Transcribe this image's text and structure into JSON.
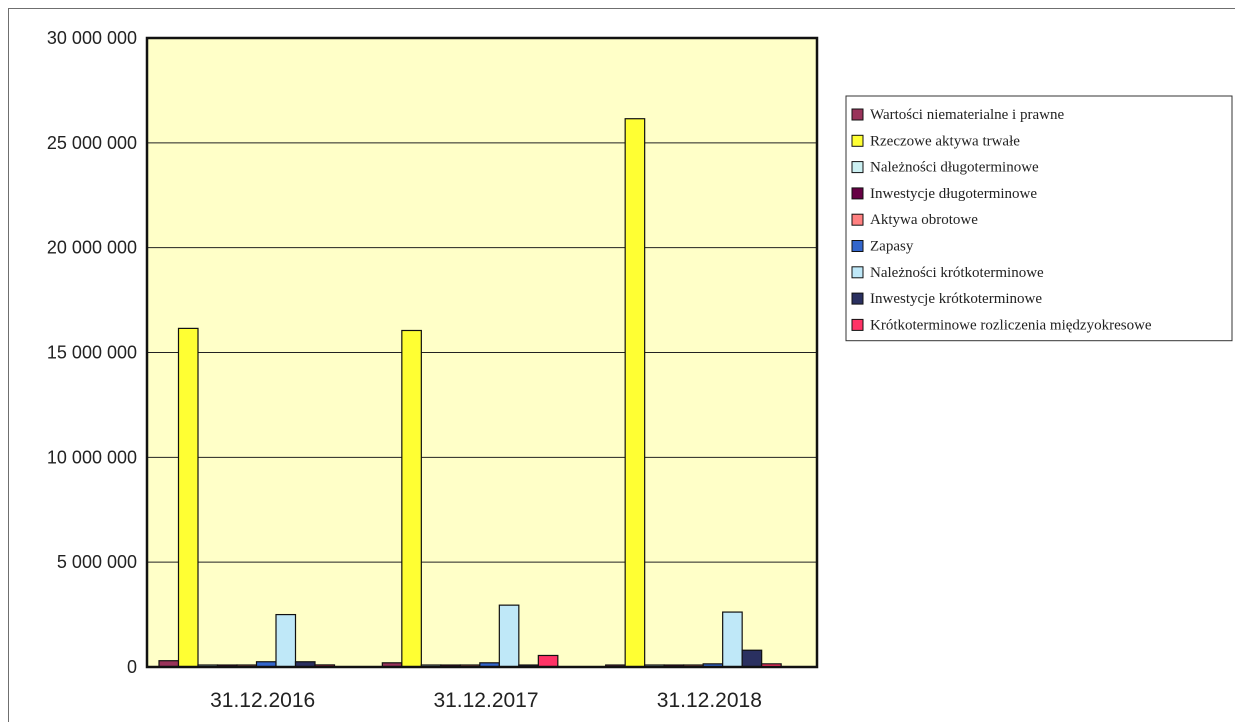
{
  "chart_data": {
    "type": "bar",
    "title": "",
    "xlabel": "",
    "ylabel": "",
    "ylim": [
      0,
      30000000
    ],
    "yticks": [
      0,
      5000000,
      10000000,
      15000000,
      20000000,
      25000000,
      30000000
    ],
    "ytick_labels": [
      "0",
      "5 000 000",
      "10 000 000",
      "15 000 000",
      "20 000 000",
      "25 000 000",
      "30 000 000"
    ],
    "grid": true,
    "legend_position": "right",
    "plot_background": "#ffffc8",
    "categories": [
      "31.12.2016",
      "31.12.2017",
      "31.12.2018"
    ],
    "series": [
      {
        "name": "Wartości niematerialne i prawne",
        "color": "#99335a",
        "values": [
          300000,
          200000,
          50000
        ]
      },
      {
        "name": "Rzeczowe aktywa trwałe",
        "color": "#ffff33",
        "values": [
          16150000,
          16050000,
          26150000
        ]
      },
      {
        "name": "Należności długoterminowe",
        "color": "#ccf0f2",
        "values": [
          0,
          0,
          0
        ]
      },
      {
        "name": "Inwestycje długoterminowe",
        "color": "#660044",
        "values": [
          0,
          0,
          0
        ]
      },
      {
        "name": "Aktywa obrotowe",
        "color": "#ff8080",
        "values": [
          0,
          0,
          0
        ]
      },
      {
        "name": "Zapasy",
        "color": "#3366cc",
        "values": [
          250000,
          200000,
          150000
        ]
      },
      {
        "name": "Należności krótkoterminowe",
        "color": "#bfe8f8",
        "values": [
          2500000,
          2950000,
          2620000
        ]
      },
      {
        "name": "Inwestycje krótkoterminowe",
        "color": "#2a3060",
        "values": [
          250000,
          50000,
          800000
        ]
      },
      {
        "name": "Krótkoterminowe rozliczenia międzyokresowe",
        "color": "#ff3366",
        "values": [
          100000,
          550000,
          150000
        ]
      }
    ]
  }
}
